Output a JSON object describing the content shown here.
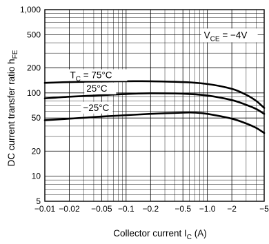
{
  "chart_data": {
    "type": "line",
    "xscale": "log",
    "yscale": "log",
    "xlim": [
      0.01,
      5
    ],
    "ylim": [
      5,
      1000
    ],
    "grid": true,
    "x_ticks": [
      0.01,
      0.02,
      0.05,
      0.1,
      0.2,
      0.5,
      1,
      2,
      5
    ],
    "x_tick_labels": [
      "−0.01",
      "−0.02",
      "−0.05",
      "−0.1",
      "−0.2",
      "−0.5",
      "−1.0",
      "−2",
      "−5"
    ],
    "y_ticks": [
      5,
      10,
      20,
      50,
      100,
      200,
      500,
      1000
    ],
    "y_tick_labels": [
      "5",
      "10",
      "20",
      "50",
      "100",
      "200",
      "500",
      "1,000"
    ],
    "xlabel": {
      "main": "Collector current  I",
      "sub": "C",
      "unit": " (A)"
    },
    "ylabel": {
      "main": "DC current transfer ratio  h",
      "sub": "FE"
    },
    "condition": {
      "main": "V",
      "sub": "CE",
      "rest": " = −4V"
    },
    "series": [
      {
        "label": {
          "main": "T",
          "sub": "C",
          "rest": " = 75°C"
        },
        "x": [
          0.01,
          0.02,
          0.05,
          0.1,
          0.2,
          0.5,
          1.0,
          2.0,
          3.0,
          4.0,
          5.0
        ],
        "y": [
          132,
          135,
          137,
          138,
          138,
          135,
          128,
          112,
          95,
          80,
          66
        ]
      },
      {
        "label": {
          "main": "25°C"
        },
        "x": [
          0.01,
          0.02,
          0.05,
          0.1,
          0.2,
          0.5,
          1.0,
          2.0,
          3.0,
          4.0,
          5.0
        ],
        "y": [
          86,
          90,
          94,
          97,
          99,
          98,
          93,
          82,
          72,
          64,
          56
        ]
      },
      {
        "label": {
          "main": "−25°C"
        },
        "x": [
          0.01,
          0.02,
          0.05,
          0.1,
          0.2,
          0.5,
          0.7,
          1.0,
          2.0,
          3.0,
          4.0,
          5.0
        ],
        "y": [
          47,
          49,
          52,
          54,
          56,
          58,
          58,
          56,
          49,
          43,
          38,
          33
        ]
      }
    ]
  }
}
